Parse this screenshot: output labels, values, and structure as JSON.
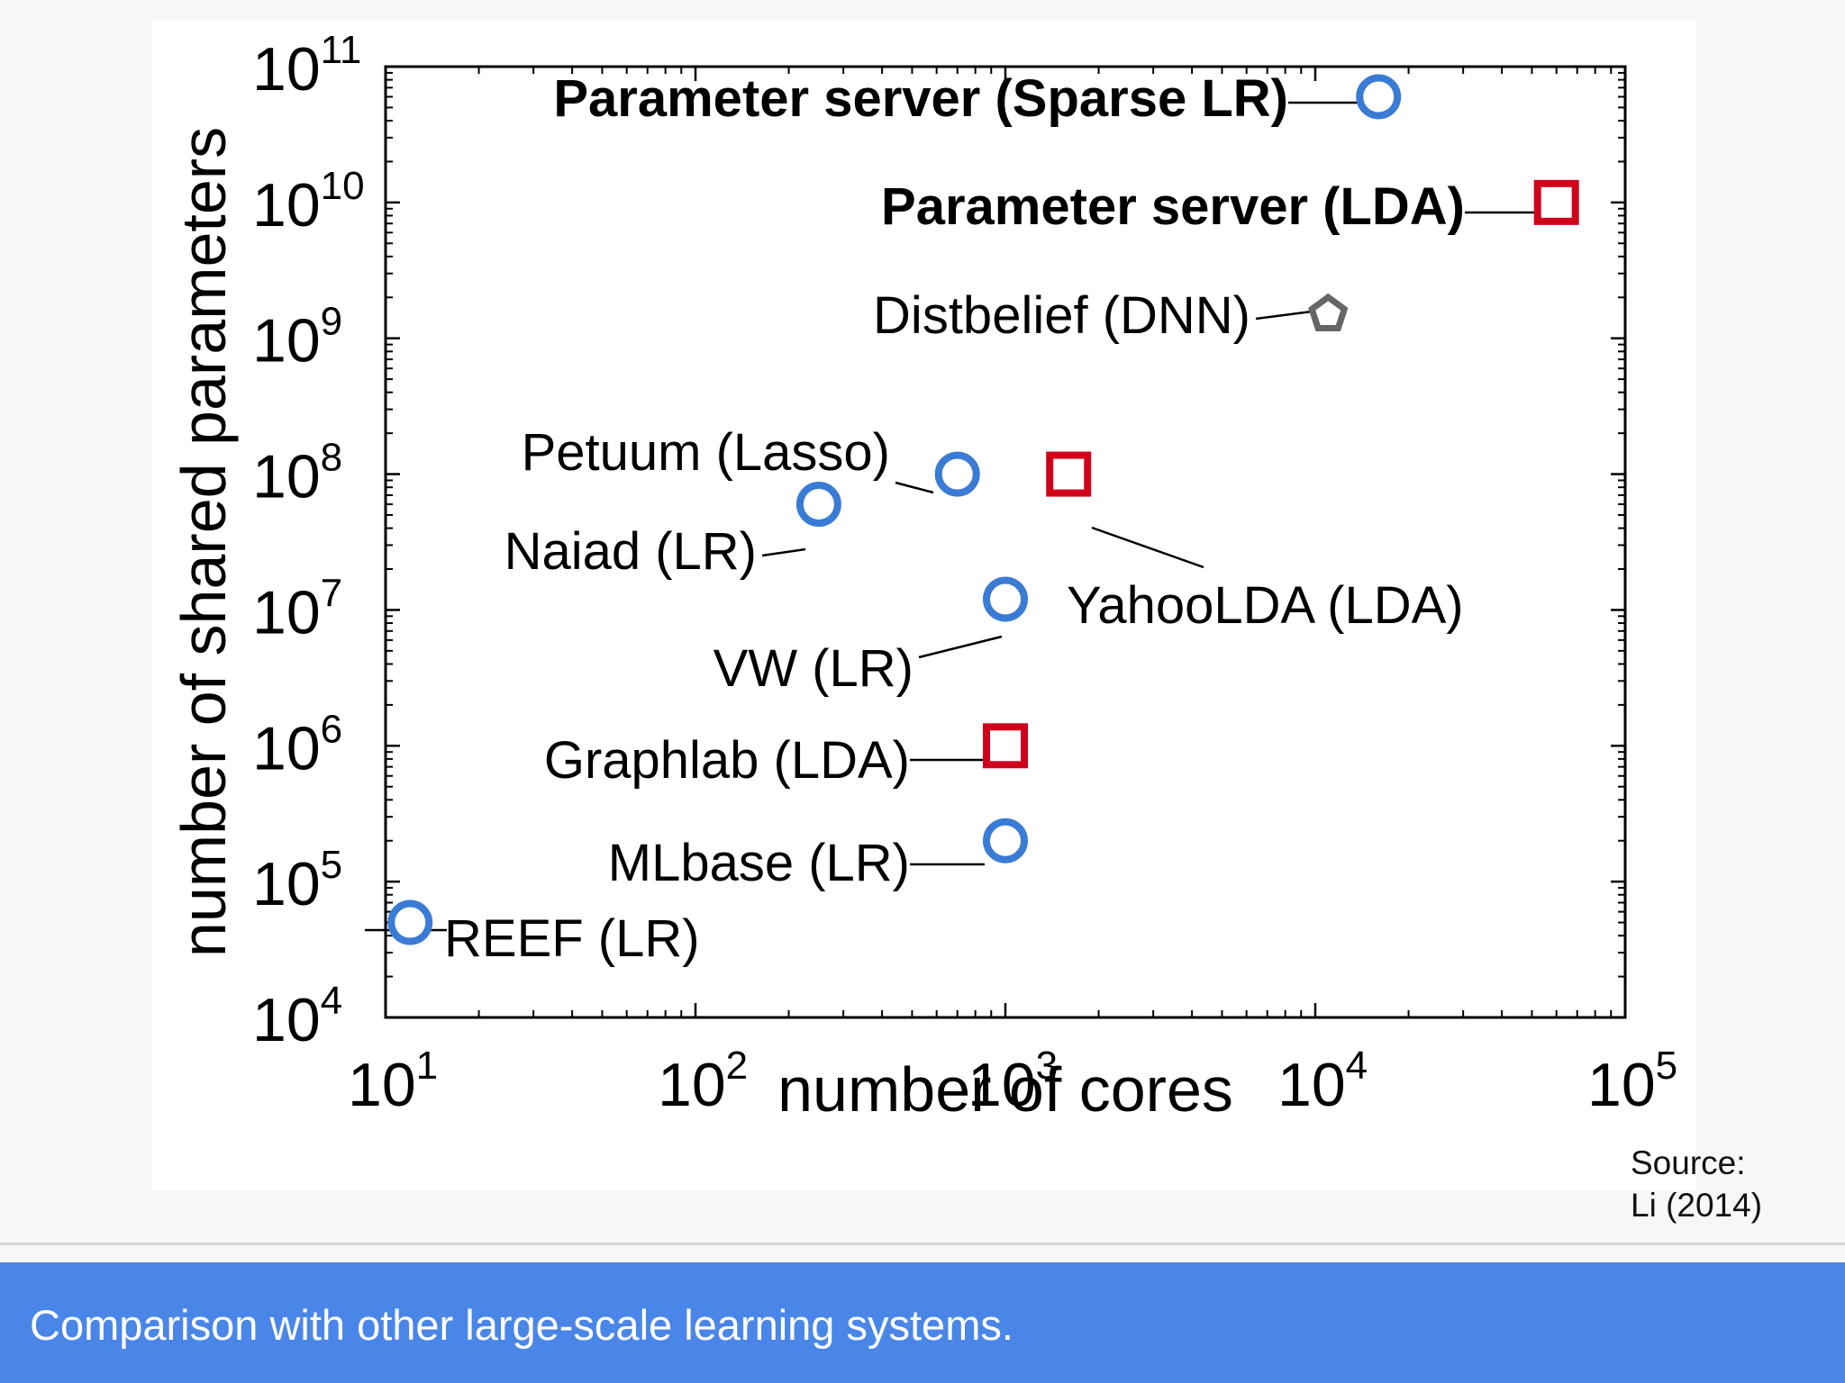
{
  "caption": "Comparison with other large-scale learning systems.",
  "source": {
    "line1": "Source:",
    "line2": "Li (2014)"
  },
  "colors": {
    "circle": "#3a7bd5",
    "square": "#d0021b",
    "pentagon": "#666666",
    "caption_bg": "#4a86e8"
  },
  "chart_data": {
    "type": "scatter",
    "xlabel": "number of cores",
    "ylabel": "number of shared parameters",
    "x_scale": "log",
    "y_scale": "log",
    "xlim": [
      10,
      100000
    ],
    "ylim": [
      10000,
      100000000000
    ],
    "x_ticks": [
      {
        "base": "10",
        "exp": "1"
      },
      {
        "base": "10",
        "exp": "2"
      },
      {
        "base": "10",
        "exp": "3"
      },
      {
        "base": "10",
        "exp": "4"
      },
      {
        "base": "10",
        "exp": "5"
      }
    ],
    "y_ticks": [
      {
        "base": "10",
        "exp": "4"
      },
      {
        "base": "10",
        "exp": "5"
      },
      {
        "base": "10",
        "exp": "6"
      },
      {
        "base": "10",
        "exp": "7"
      },
      {
        "base": "10",
        "exp": "8"
      },
      {
        "base": "10",
        "exp": "9"
      },
      {
        "base": "10",
        "exp": "10"
      },
      {
        "base": "10",
        "exp": "11"
      }
    ],
    "grid": false,
    "points": [
      {
        "label": "Parameter server (Sparse LR)",
        "x": 16000,
        "y": 60000000000,
        "marker": "circle",
        "bold": true
      },
      {
        "label": "Parameter server (LDA)",
        "x": 60000,
        "y": 10000000000,
        "marker": "square",
        "bold": true
      },
      {
        "label": "Distbelief (DNN)",
        "x": 11000,
        "y": 1500000000,
        "marker": "pentagon",
        "bold": false
      },
      {
        "label": "Petuum (Lasso)",
        "x": 700,
        "y": 100000000,
        "marker": "circle",
        "bold": false
      },
      {
        "label": "Naiad (LR)",
        "x": 250,
        "y": 60000000,
        "marker": "circle",
        "bold": false
      },
      {
        "label": "YahooLDA (LDA)",
        "x": 1600,
        "y": 100000000,
        "marker": "square",
        "bold": false
      },
      {
        "label": "VW (LR)",
        "x": 1000,
        "y": 12000000,
        "marker": "circle",
        "bold": false
      },
      {
        "label": "Graphlab (LDA)",
        "x": 1000,
        "y": 1000000,
        "marker": "square",
        "bold": false
      },
      {
        "label": "MLbase (LR)",
        "x": 1000,
        "y": 200000,
        "marker": "circle",
        "bold": false
      },
      {
        "label": "REEF (LR)",
        "x": 12,
        "y": 50000,
        "marker": "circle",
        "bold": false
      }
    ]
  }
}
